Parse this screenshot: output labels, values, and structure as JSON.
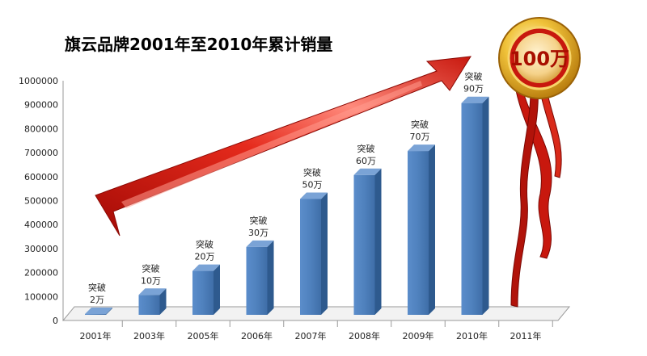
{
  "chart_data": {
    "type": "bar",
    "title": "旗云品牌2001年至2010年累计销量",
    "categories": [
      "2001年",
      "2003年",
      "2005年",
      "2006年",
      "2007年",
      "2008年",
      "2009年",
      "2010年",
      "2011年"
    ],
    "values": [
      20000,
      100000,
      200000,
      300000,
      500000,
      600000,
      700000,
      900000,
      null
    ],
    "data_labels": [
      [
        "突破",
        "2万"
      ],
      [
        "突破",
        "10万"
      ],
      [
        "突破",
        "20万"
      ],
      [
        "突破",
        "30万"
      ],
      [
        "突破",
        "50万"
      ],
      [
        "突破",
        "60万"
      ],
      [
        "突破",
        "70万"
      ],
      [
        "突破",
        "90万"
      ],
      null
    ],
    "ylim": [
      0,
      1000000
    ],
    "yticks": [
      "0",
      "100000",
      "200000",
      "300000",
      "400000",
      "500000",
      "600000",
      "700000",
      "800000",
      "900000",
      "1000000"
    ],
    "xlabel": "",
    "ylabel": "",
    "grid": false,
    "legend": "none",
    "bar_color": "#4f81bd"
  },
  "seal": {
    "label": "100万",
    "colors": {
      "gold": "#e0a623",
      "red": "#c8180e"
    }
  },
  "decorations": {
    "arrow_color": "#d4150c"
  }
}
